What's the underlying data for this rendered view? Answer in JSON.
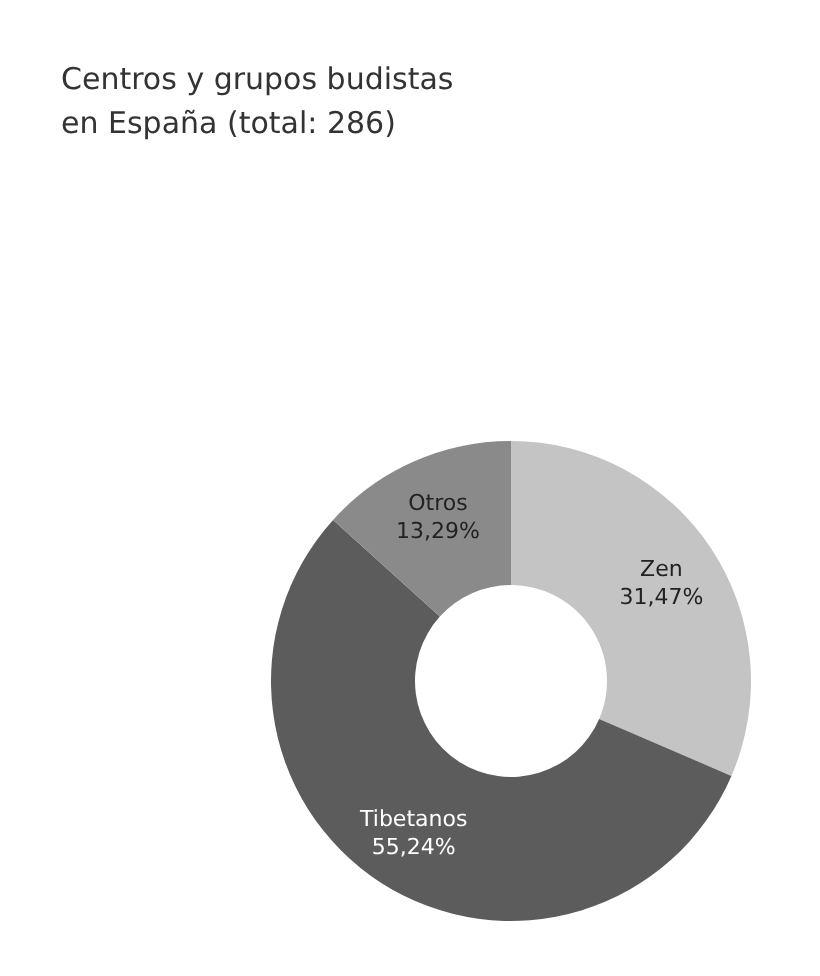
{
  "chart_data": {
    "type": "donut",
    "title": "Centros y grupos budistas en España (total: 286)",
    "categories": [
      "Zen",
      "Tibetanos",
      "Otros"
    ],
    "values": [
      31.47,
      55.24,
      13.29
    ],
    "colors": [
      "#c4c4c4",
      "#5c5c5c",
      "#8a8a8a"
    ],
    "value_labels": [
      "31,47%",
      "55,24%",
      "13,29%"
    ]
  }
}
